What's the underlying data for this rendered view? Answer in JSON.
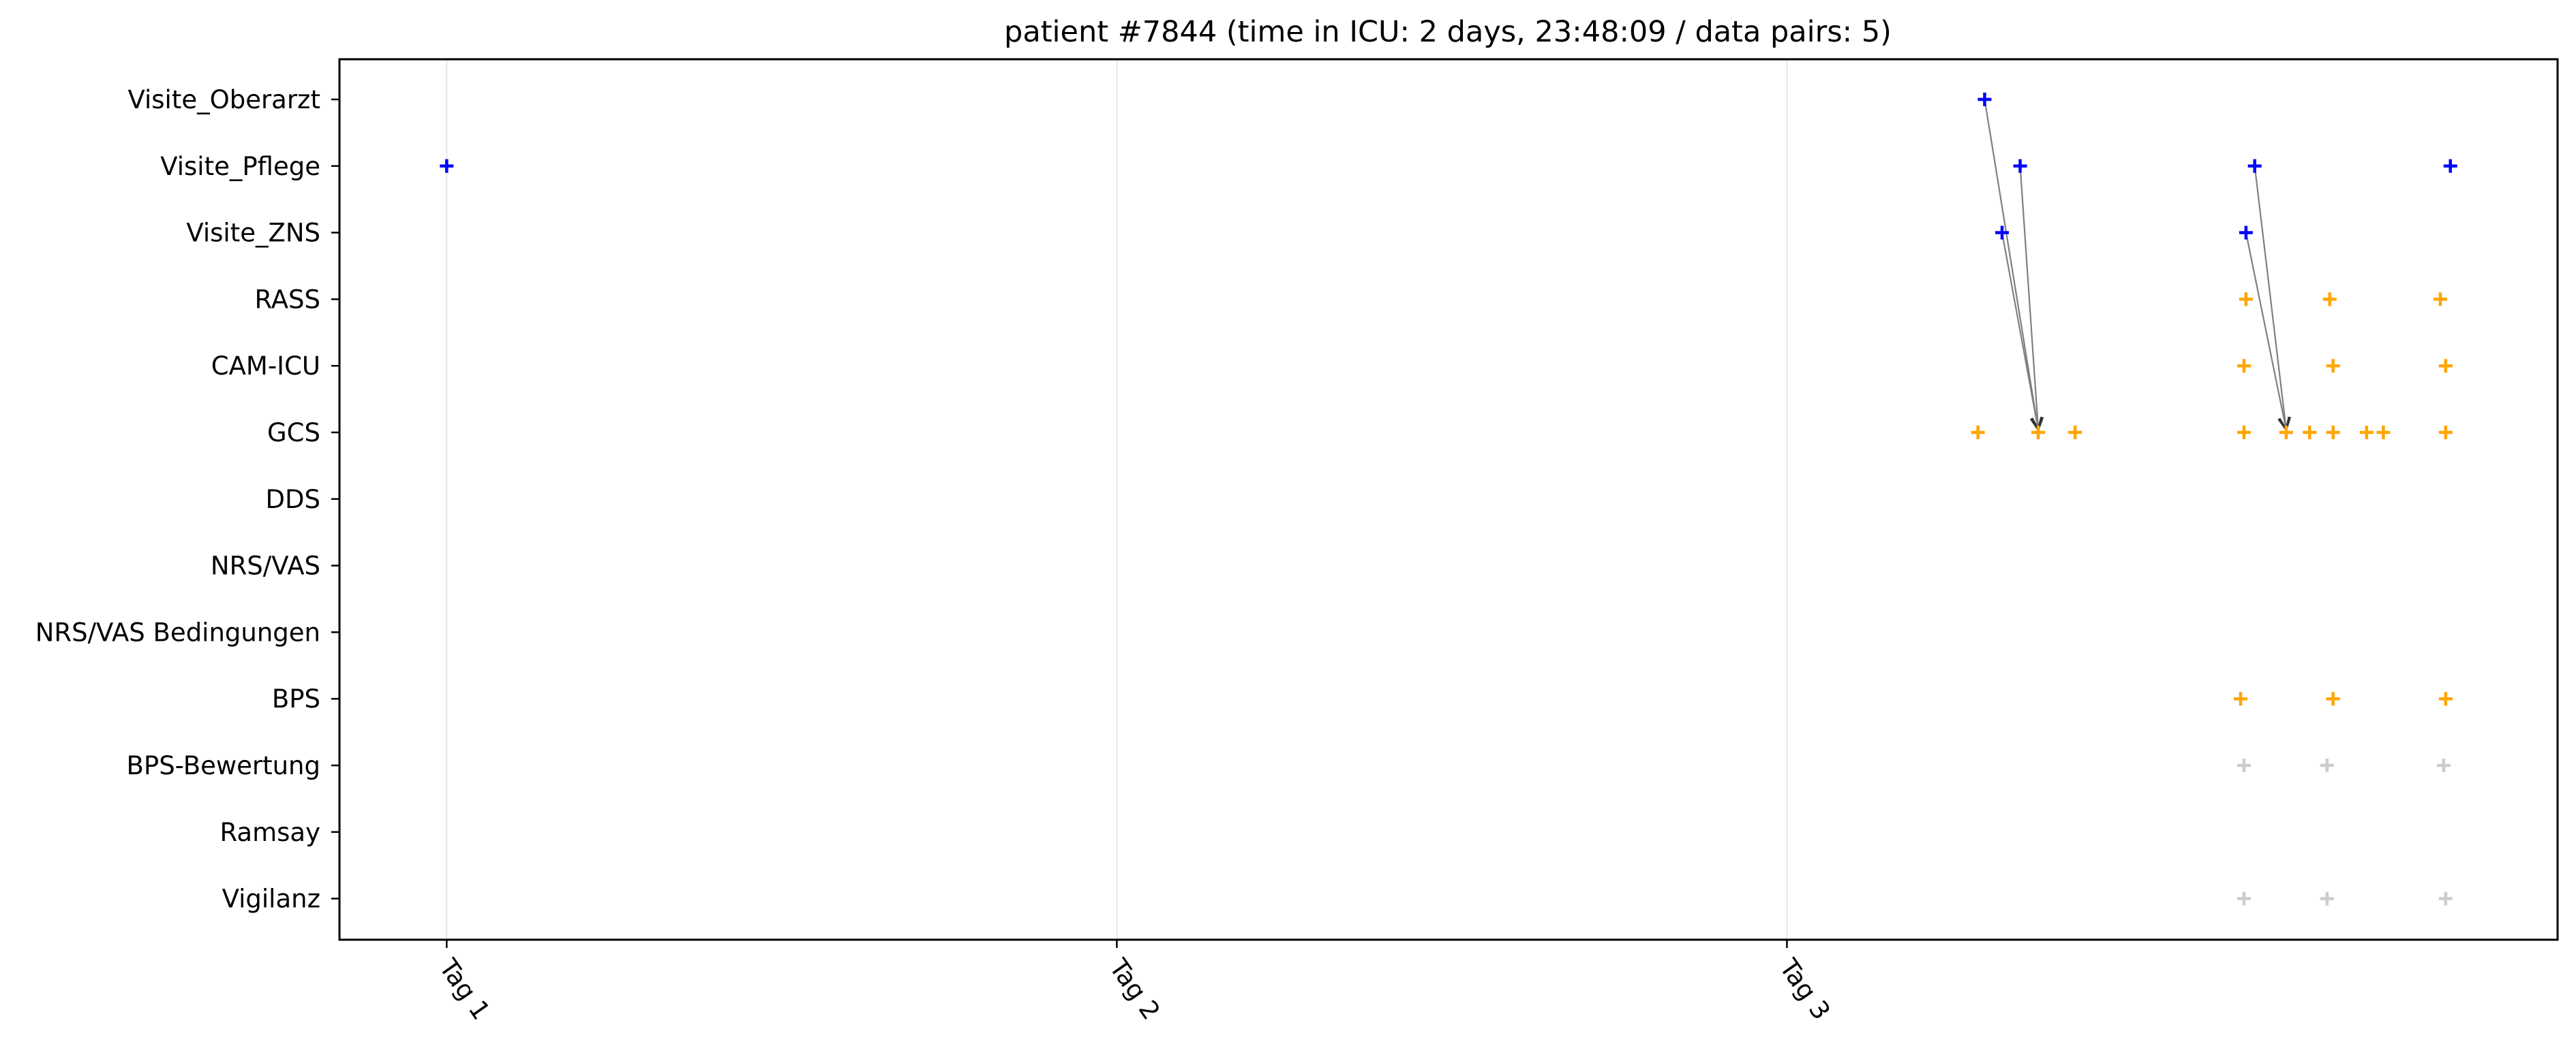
{
  "chart_data": {
    "type": "scatter",
    "title": "patient #7844 (time in ICU: 2 days, 23:48:09 / data pairs: 5)",
    "xlabel": "",
    "ylabel": "",
    "x_unit": "days since admission",
    "xlim": [
      -0.16,
      3.15
    ],
    "xticks": [
      {
        "value": 0,
        "label": "Tag 1"
      },
      {
        "value": 1,
        "label": "Tag 2"
      },
      {
        "value": 2,
        "label": "Tag 3"
      }
    ],
    "categories": [
      "Visite_Oberarzt",
      "Visite_Pflege",
      "Visite_ZNS",
      "RASS",
      "CAM-ICU",
      "GCS",
      "DDS",
      "NRS/VAS",
      "NRS/VAS Bedingungen",
      "BPS",
      "BPS-Bewertung",
      "Ramsay",
      "Vigilanz"
    ],
    "grid": "vertical",
    "marker": "plus",
    "colors": {
      "visite": "#0000ff",
      "score": "#ffa500",
      "inactive": "#cccccc",
      "arrow": "#808080",
      "gridline": "#e6e6e6"
    },
    "series": [
      {
        "category": "Visite_Oberarzt",
        "color": "visite",
        "x": [
          2.295
        ]
      },
      {
        "category": "Visite_Pflege",
        "color": "visite",
        "x": [
          0.0,
          2.348,
          2.698,
          2.99
        ]
      },
      {
        "category": "Visite_ZNS",
        "color": "visite",
        "x": [
          2.321,
          2.685
        ]
      },
      {
        "category": "RASS",
        "color": "score",
        "x": [
          2.685,
          2.81,
          2.975
        ]
      },
      {
        "category": "CAM-ICU",
        "color": "score",
        "x": [
          2.682,
          2.815,
          2.983
        ]
      },
      {
        "category": "GCS",
        "color": "score",
        "x": [
          2.285,
          2.375,
          2.43,
          2.682,
          2.745,
          2.78,
          2.815,
          2.865,
          2.89,
          2.983
        ]
      },
      {
        "category": "DDS",
        "color": "score",
        "x": []
      },
      {
        "category": "NRS/VAS",
        "color": "score",
        "x": []
      },
      {
        "category": "NRS/VAS Bedingungen",
        "color": "score",
        "x": []
      },
      {
        "category": "BPS",
        "color": "score",
        "x": [
          2.677,
          2.815,
          2.983
        ]
      },
      {
        "category": "BPS-Bewertung",
        "color": "inactive",
        "x": [
          2.682,
          2.806,
          2.98
        ]
      },
      {
        "category": "Ramsay",
        "color": "inactive",
        "x": []
      },
      {
        "category": "Vigilanz",
        "color": "inactive",
        "x": [
          2.682,
          2.806,
          2.983
        ]
      }
    ],
    "pairs": [
      {
        "from": {
          "category": "Visite_Oberarzt",
          "x": 2.295
        },
        "to": {
          "category": "GCS",
          "x": 2.375
        }
      },
      {
        "from": {
          "category": "Visite_Pflege",
          "x": 2.348
        },
        "to": {
          "category": "GCS",
          "x": 2.375
        }
      },
      {
        "from": {
          "category": "Visite_ZNS",
          "x": 2.321
        },
        "to": {
          "category": "GCS",
          "x": 2.375
        }
      },
      {
        "from": {
          "category": "Visite_Pflege",
          "x": 2.698
        },
        "to": {
          "category": "GCS",
          "x": 2.745
        }
      },
      {
        "from": {
          "category": "Visite_ZNS",
          "x": 2.685
        },
        "to": {
          "category": "GCS",
          "x": 2.745
        }
      }
    ]
  }
}
